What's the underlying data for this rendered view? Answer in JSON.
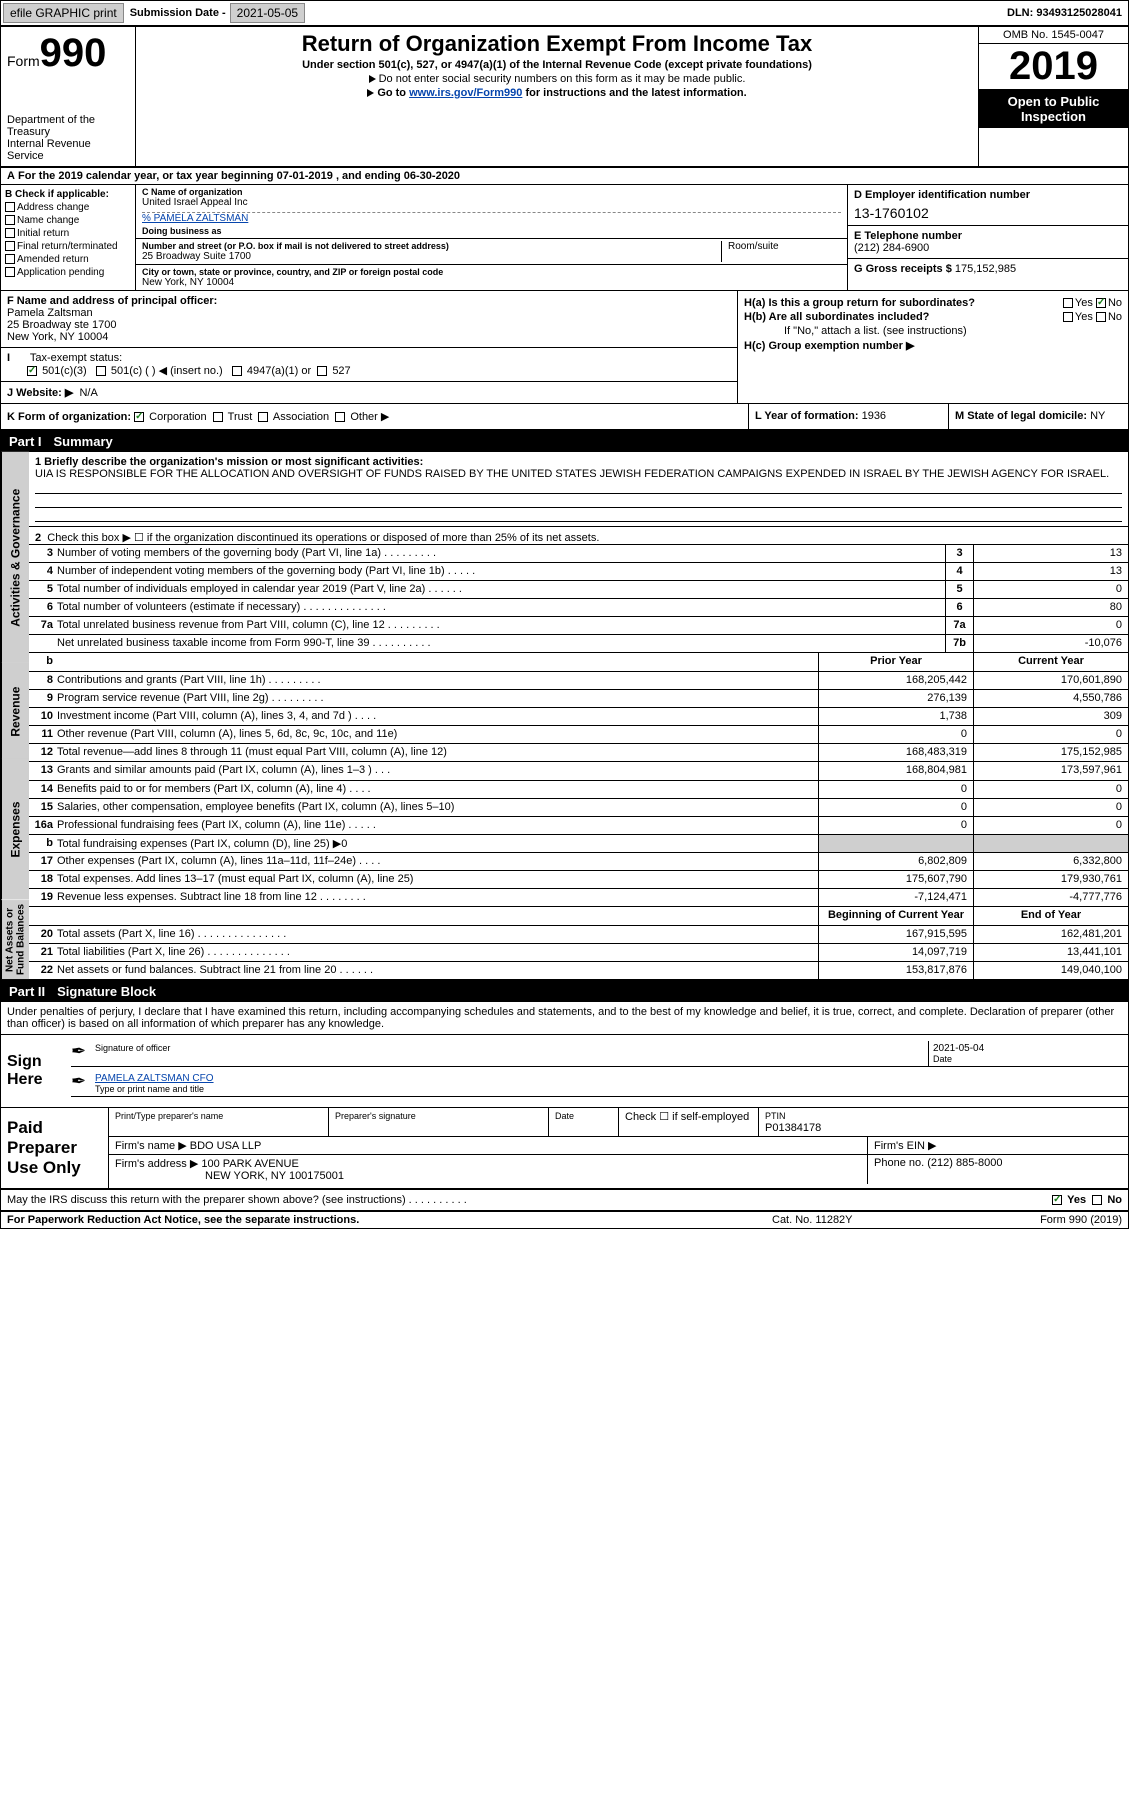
{
  "topbar": {
    "efile": "efile GRAPHIC print",
    "subdate_lbl": "Submission Date -",
    "subdate_val": "2021-05-05",
    "dln_lbl": "DLN:",
    "dln_val": "93493125028041"
  },
  "hdr": {
    "form_pre": "Form",
    "form_num": "990",
    "dept": "Department of the Treasury\nInternal Revenue Service",
    "title": "Return of Organization Exempt From Income Tax",
    "under": "Under section 501(c), 527, or 4947(a)(1) of the Internal Revenue Code (except private foundations)",
    "ssn": "Do not enter social security numbers on this form as it may be made public.",
    "goto_pre": "Go to ",
    "goto_link": "www.irs.gov/Form990",
    "goto_post": " for instructions and the latest information.",
    "omb": "OMB No. 1545-0047",
    "year": "2019",
    "inspect": "Open to Public Inspection"
  },
  "period": {
    "label_a": "A",
    "text": "For the 2019 calendar year, or tax year beginning 07-01-2019   , and ending 06-30-2020"
  },
  "col_b": {
    "hdr": "B Check if applicable:",
    "items": [
      "Address change",
      "Name change",
      "Initial return",
      "Final return/terminated",
      "Amended return",
      "Application pending"
    ]
  },
  "col_c": {
    "name_lbl": "C Name of organization",
    "name_val": "United Israel Appeal Inc",
    "care_of": "% PAMELA ZALTSMAN",
    "dba_lbl": "Doing business as",
    "addr_lbl": "Number and street (or P.O. box if mail is not delivered to street address)",
    "room_lbl": "Room/suite",
    "addr_val": "25 Broadway Suite 1700",
    "city_lbl": "City or town, state or province, country, and ZIP or foreign postal code",
    "city_val": "New York, NY  10004"
  },
  "col_d": {
    "ein_lbl": "D Employer identification number",
    "ein_val": "13-1760102",
    "tel_lbl": "E Telephone number",
    "tel_val": "(212) 284-6900",
    "gross_lbl": "G Gross receipts $",
    "gross_val": "175,152,985"
  },
  "principal": {
    "lbl": "F  Name and address of principal officer:",
    "name": "Pamela Zaltsman",
    "addr1": "25 Broadway ste 1700",
    "addr2": "New York, NY  10004"
  },
  "h": {
    "a_lbl": "H(a)  Is this a group return for subordinates?",
    "b_lbl": "H(b)  Are all subordinates included?",
    "b_note": "If \"No,\" attach a list. (see instructions)",
    "c_lbl": "H(c)  Group exemption number ▶",
    "yes": "Yes",
    "no": "No"
  },
  "status": {
    "i_lbl": "Tax-exempt status:",
    "s1": "501(c)(3)",
    "s2": "501(c) (  ) ◀ (insert no.)",
    "s3": "4947(a)(1) or",
    "s4": "527"
  },
  "site": {
    "j_lbl": "J   Website: ▶",
    "val": "N/A"
  },
  "k": {
    "lbl": "K Form of organization:",
    "opts": [
      "Corporation",
      "Trust",
      "Association",
      "Other ▶"
    ],
    "l_lbl": "L Year of formation:",
    "l_val": "1936",
    "m_lbl": "M State of legal domicile:",
    "m_val": "NY"
  },
  "parts": {
    "p1": "Part I",
    "p1_t": "Summary",
    "p2": "Part II",
    "p2_t": "Signature Block"
  },
  "vtabs": {
    "act": "Activities & Governance",
    "rev": "Revenue",
    "exp": "Expenses",
    "net": "Net Assets or Fund Balances"
  },
  "mission": {
    "lbl": "1   Briefly describe the organization's mission or most significant activities:",
    "txt": "UIA IS RESPONSIBLE FOR THE ALLOCATION AND OVERSIGHT OF FUNDS RAISED BY THE UNITED STATES JEWISH FEDERATION CAMPAIGNS EXPENDED IN ISRAEL BY THE JEWISH AGENCY FOR ISRAEL."
  },
  "line2": {
    "n": "2",
    "t": "Check this box ▶ ☐  if the organization discontinued its operations or disposed of more than 25% of its net assets."
  },
  "gov_lines": [
    {
      "n": "3",
      "t": "Number of voting members of the governing body (Part VI, line 1a)   .    .    .    .    .    .    .    .    .",
      "box": "3",
      "val": "13"
    },
    {
      "n": "4",
      "t": "Number of independent voting members of the governing body (Part VI, line 1b)   .    .    .    .    .",
      "box": "4",
      "val": "13"
    },
    {
      "n": "5",
      "t": "Total number of individuals employed in calendar year 2019 (Part V, line 2a)   .    .    .    .    .    .",
      "box": "5",
      "val": "0"
    },
    {
      "n": "6",
      "t": "Total number of volunteers (estimate if necessary)   .    .    .    .    .    .    .    .    .    .    .    .    .    .",
      "box": "6",
      "val": "80"
    },
    {
      "n": "7a",
      "t": "Total unrelated business revenue from Part VIII, column (C), line 12   .    .    .    .    .    .    .    .    .",
      "box": "7a",
      "val": "0"
    },
    {
      "n": "",
      "t": "Net unrelated business taxable income from Form 990-T, line 39   .    .    .    .    .    .    .    .    .    .",
      "box": "7b",
      "val": "-10,076"
    }
  ],
  "cols": {
    "prior": "Prior Year",
    "current": "Current Year",
    "boy": "Beginning of Current Year",
    "eoy": "End of Year"
  },
  "rev_lines": [
    {
      "n": "8",
      "t": "Contributions and grants (Part VIII, line 1h)   .   .   .   .   .   .   .   .   .",
      "p": "168,205,442",
      "c": "170,601,890"
    },
    {
      "n": "9",
      "t": "Program service revenue (Part VIII, line 2g)   .   .   .   .   .   .   .   .   .",
      "p": "276,139",
      "c": "4,550,786"
    },
    {
      "n": "10",
      "t": "Investment income (Part VIII, column (A), lines 3, 4, and 7d )   .   .   .   .",
      "p": "1,738",
      "c": "309"
    },
    {
      "n": "11",
      "t": "Other revenue (Part VIII, column (A), lines 5, 6d, 8c, 9c, 10c, and 11e)",
      "p": "0",
      "c": "0"
    },
    {
      "n": "12",
      "t": "Total revenue—add lines 8 through 11 (must equal Part VIII, column (A), line 12)",
      "p": "168,483,319",
      "c": "175,152,985"
    }
  ],
  "exp_lines": [
    {
      "n": "13",
      "t": "Grants and similar amounts paid (Part IX, column (A), lines 1–3 )   .   .   .",
      "p": "168,804,981",
      "c": "173,597,961"
    },
    {
      "n": "14",
      "t": "Benefits paid to or for members (Part IX, column (A), line 4)   .   .   .   .",
      "p": "0",
      "c": "0"
    },
    {
      "n": "15",
      "t": "Salaries, other compensation, employee benefits (Part IX, column (A), lines 5–10)",
      "p": "0",
      "c": "0"
    },
    {
      "n": "16a",
      "t": "Professional fundraising fees (Part IX, column (A), line 11e)   .   .   .   .   .",
      "p": "0",
      "c": "0"
    },
    {
      "n": "b",
      "t": "Total fundraising expenses (Part IX, column (D), line 25) ▶0",
      "p": "",
      "c": "",
      "shade": true
    },
    {
      "n": "17",
      "t": "Other expenses (Part IX, column (A), lines 11a–11d, 11f–24e)   .   .   .   .",
      "p": "6,802,809",
      "c": "6,332,800"
    },
    {
      "n": "18",
      "t": "Total expenses. Add lines 13–17 (must equal Part IX, column (A), line 25)",
      "p": "175,607,790",
      "c": "179,930,761"
    },
    {
      "n": "19",
      "t": "Revenue less expenses. Subtract line 18 from line 12 .   .   .   .   .   .   .   .",
      "p": "-7,124,471",
      "c": "-4,777,776"
    }
  ],
  "net_lines": [
    {
      "n": "20",
      "t": "Total assets (Part X, line 16)   .   .   .   .   .   .   .   .   .   .   .   .   .   .   .",
      "p": "167,915,595",
      "c": "162,481,201"
    },
    {
      "n": "21",
      "t": "Total liabilities (Part X, line 26)   .   .   .   .   .   .   .   .   .   .   .   .   .   .",
      "p": "14,097,719",
      "c": "13,441,101"
    },
    {
      "n": "22",
      "t": "Net assets or fund balances. Subtract line 21 from line 20   .   .   .   .   .   .",
      "p": "153,817,876",
      "c": "149,040,100"
    }
  ],
  "sig_intro": "Under penalties of perjury, I declare that I have examined this return, including accompanying schedules and statements, and to the best of my knowledge and belief, it is true, correct, and complete. Declaration of preparer (other than officer) is based on all information of which preparer has any knowledge.",
  "sig": {
    "here": "Sign Here",
    "officer_lbl": "Signature of officer",
    "date_lbl": "Date",
    "date_val": "2021-05-04",
    "name_lbl": "Type or print name and title",
    "name_val": "PAMELA ZALTSMAN  CFO"
  },
  "prep": {
    "lbl": "Paid Preparer Use Only",
    "p_name_lbl": "Print/Type preparer's name",
    "p_sig_lbl": "Preparer's signature",
    "p_date_lbl": "Date",
    "p_check_lbl": "Check ☐  if self-employed",
    "ptin_lbl": "PTIN",
    "ptin_val": "P01384178",
    "firm_name_lbl": "Firm's name    ▶",
    "firm_name_val": "BDO USA LLP",
    "firm_ein_lbl": "Firm's EIN ▶",
    "firm_addr_lbl": "Firm's address ▶",
    "firm_addr_val1": "100 PARK AVENUE",
    "firm_addr_val2": "NEW YORK, NY  100175001",
    "phone_lbl": "Phone no.",
    "phone_val": "(212) 885-8000"
  },
  "discuss": {
    "q": "May the IRS discuss this return with the preparer shown above? (see instructions)   .   .   .   .   .   .   .   .   .   .",
    "yes": "Yes",
    "no": "No"
  },
  "foot": {
    "l": "For Paperwork Reduction Act Notice, see the separate instructions.",
    "m": "Cat. No. 11282Y",
    "r": "Form 990 (2019)"
  }
}
